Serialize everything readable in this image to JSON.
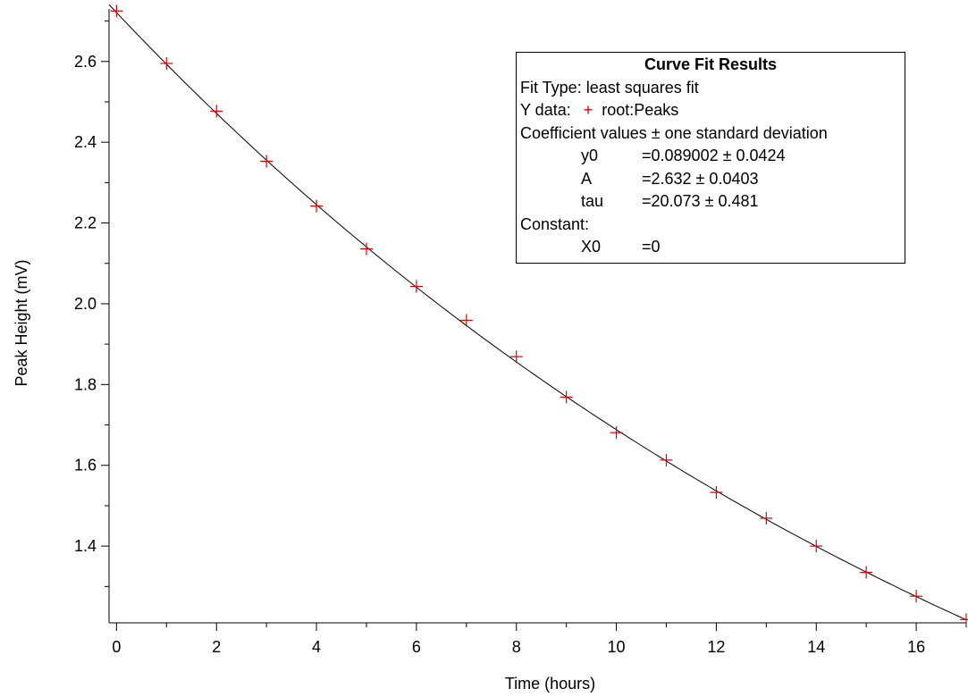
{
  "chart_data": {
    "type": "scatter",
    "x": [
      0,
      1,
      2,
      3,
      4,
      5,
      6,
      7,
      8,
      9,
      10,
      11,
      12,
      13,
      14,
      15,
      16,
      17
    ],
    "series": [
      {
        "name": "root:Peaks",
        "values": [
          2.725,
          2.595,
          2.477,
          2.353,
          2.242,
          2.136,
          2.043,
          1.959,
          1.869,
          1.769,
          1.681,
          1.613,
          1.533,
          1.469,
          1.4,
          1.335,
          1.276,
          1.218
        ],
        "color": "#e00000",
        "marker": "plus"
      }
    ],
    "fit": {
      "model": "y0 + A*exp(-(x-X0)/tau)",
      "y0": 0.089002,
      "A": 2.632,
      "tau": 20.073,
      "X0": 0,
      "color": "#000000"
    },
    "xlabel": "Time (hours)",
    "ylabel": "Peak Height (mV)",
    "xlim": [
      -0.15,
      17
    ],
    "ylim": [
      1.21,
      2.73
    ],
    "xticks": [
      0,
      2,
      4,
      6,
      8,
      10,
      12,
      14,
      16
    ],
    "yticks": [
      1.4,
      1.6,
      1.8,
      2.0,
      2.2,
      2.4,
      2.6
    ],
    "xtick_labels": [
      "0",
      "2",
      "4",
      "6",
      "8",
      "10",
      "12",
      "14",
      "16"
    ],
    "ytick_labels": [
      "1.4",
      "1.6",
      "1.8",
      "2.0",
      "2.2",
      "2.4",
      "2.6"
    ],
    "grid": false,
    "legend_position": "top-right"
  },
  "fit_results": {
    "title": "Curve Fit Results",
    "fit_type": "Fit Type: least squares fit",
    "y_data_label": "Y data:",
    "y_data_marker": "+",
    "y_data_name": "root:Peaks",
    "coef_header": "Coefficient values ± one standard deviation",
    "coefficients": [
      {
        "name": "y0",
        "value": "=0.089002 ± 0.0424"
      },
      {
        "name": "A",
        "value": "=2.632 ± 0.0403"
      },
      {
        "name": "tau",
        "value": "=20.073 ± 0.481"
      }
    ],
    "constant_header": "Constant:",
    "constants": [
      {
        "name": "X0",
        "value": "=0"
      }
    ]
  }
}
